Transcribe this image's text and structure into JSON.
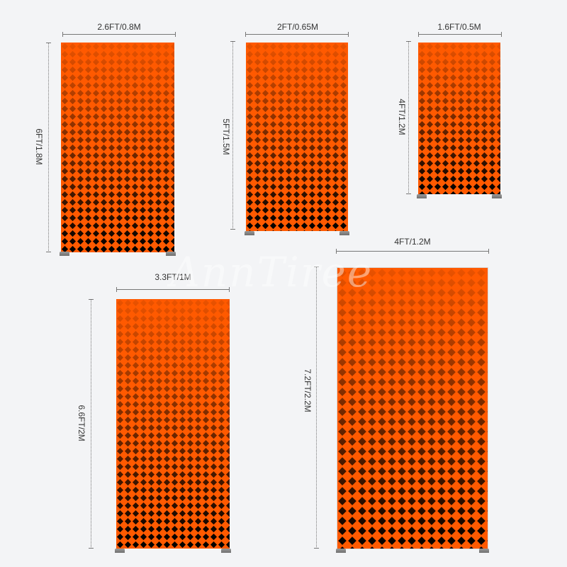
{
  "stands": [
    {
      "id": "a",
      "width_label": "2.6FT/0.8M",
      "height_label": "6FT/1.8M"
    },
    {
      "id": "b",
      "width_label": "2FT/0.65M",
      "height_label": "5FT/1.5M"
    },
    {
      "id": "c",
      "width_label": "1.6FT/0.5M",
      "height_label": "4FT/1.2M"
    },
    {
      "id": "d",
      "width_label": "3.3FT/1M",
      "height_label": "6.6FT/2M"
    },
    {
      "id": "e",
      "width_label": "4FT/1.2M",
      "height_label": "7.2FT/2.2M"
    }
  ],
  "watermark": "AnnTiree",
  "colors": {
    "panel": "#ff5a00",
    "pattern": "#000000",
    "background": "#f3f4f6"
  }
}
